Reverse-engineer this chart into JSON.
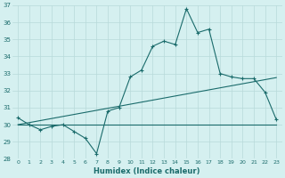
{
  "xlabel": "Humidex (Indice chaleur)",
  "ylabel": "",
  "x": [
    0,
    1,
    2,
    3,
    4,
    5,
    6,
    7,
    8,
    9,
    10,
    11,
    12,
    13,
    14,
    15,
    16,
    17,
    18,
    19,
    20,
    21,
    22,
    23
  ],
  "y_main": [
    30.4,
    30.0,
    29.7,
    29.9,
    30.0,
    29.6,
    29.2,
    28.3,
    30.8,
    31.0,
    32.8,
    33.2,
    34.6,
    34.9,
    34.7,
    36.8,
    35.4,
    35.6,
    33.0,
    32.8,
    32.7,
    32.7,
    31.9,
    30.3
  ],
  "y_diagonal": [
    30.0,
    30.12,
    30.24,
    30.36,
    30.48,
    30.6,
    30.72,
    30.84,
    30.96,
    31.08,
    31.2,
    31.32,
    31.44,
    31.56,
    31.68,
    31.8,
    31.92,
    32.04,
    32.16,
    32.28,
    32.4,
    32.52,
    32.64,
    32.76
  ],
  "y_flat": [
    30.0,
    30.0,
    30.0,
    30.0,
    30.0,
    30.0,
    30.0,
    30.0,
    30.0,
    30.0,
    30.0,
    30.0,
    30.0,
    30.0,
    30.0,
    30.0,
    30.0,
    30.0,
    30.0,
    30.0,
    30.0,
    30.0,
    30.0,
    30.0
  ],
  "line_color": "#1a6b6b",
  "bg_color": "#d5f0f0",
  "grid_color": "#b8dada",
  "ylim": [
    28,
    37
  ],
  "xlim": [
    -0.5,
    23.5
  ]
}
